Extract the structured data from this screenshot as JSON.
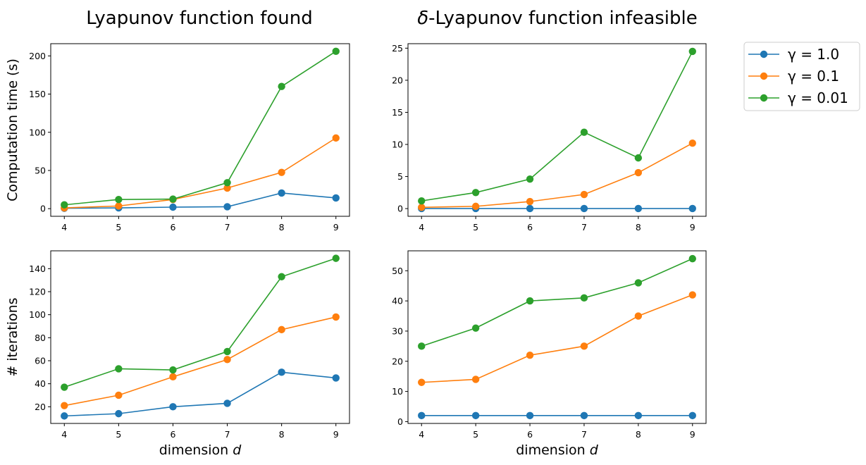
{
  "titles": {
    "left": "Lyapunov function found",
    "right_symbol": "δ",
    "right_rest": "-Lyapunov function infeasible"
  },
  "legend": [
    {
      "label": "γ = 1.0",
      "color": "#1f77b4"
    },
    {
      "label": "γ = 0.1",
      "color": "#ff7f0e"
    },
    {
      "label": "γ = 0.01",
      "color": "#2ca02c"
    }
  ],
  "chart_data": [
    {
      "id": "time_found",
      "type": "line",
      "ylabel": "Computation time (s)",
      "xlabel": "",
      "x": [
        4,
        5,
        6,
        7,
        8,
        9
      ],
      "xlim": [
        3.75,
        9.25
      ],
      "ylim": [
        -10,
        216
      ],
      "yticks": [
        0,
        50,
        100,
        150,
        200
      ],
      "series": [
        {
          "name": "γ = 1.0",
          "color": "#1f77b4",
          "values": [
            0.5,
            1,
            2,
            2.5,
            20.5,
            14
          ]
        },
        {
          "name": "γ = 0.1",
          "color": "#ff7f0e",
          "values": [
            1,
            3.5,
            12,
            27,
            47.5,
            92.5
          ]
        },
        {
          "name": "γ = 0.01",
          "color": "#2ca02c",
          "values": [
            5,
            12,
            12.5,
            34,
            160,
            206
          ]
        }
      ]
    },
    {
      "id": "time_infeasible",
      "type": "line",
      "ylabel": "",
      "xlabel": "",
      "x": [
        4,
        5,
        6,
        7,
        8,
        9
      ],
      "xlim": [
        3.75,
        9.25
      ],
      "ylim": [
        -1.2,
        25.7
      ],
      "yticks": [
        0,
        5,
        10,
        15,
        20,
        25
      ],
      "series": [
        {
          "name": "γ = 1.0",
          "color": "#1f77b4",
          "values": [
            0.02,
            0.02,
            0.02,
            0.02,
            0.02,
            0.02
          ]
        },
        {
          "name": "γ = 0.1",
          "color": "#ff7f0e",
          "values": [
            0.2,
            0.35,
            1.1,
            2.2,
            5.6,
            10.2
          ]
        },
        {
          "name": "γ = 0.01",
          "color": "#2ca02c",
          "values": [
            1.2,
            2.5,
            4.6,
            11.9,
            7.9,
            24.5
          ]
        }
      ]
    },
    {
      "id": "iter_found",
      "type": "line",
      "ylabel": "# iterations",
      "xlabel": "dimension",
      "xlabel_symbol": "d",
      "x": [
        4,
        5,
        6,
        7,
        8,
        9
      ],
      "xlim": [
        3.75,
        9.25
      ],
      "ylim": [
        5.5,
        155.5
      ],
      "yticks": [
        20,
        40,
        60,
        80,
        100,
        120,
        140
      ],
      "series": [
        {
          "name": "γ = 1.0",
          "color": "#1f77b4",
          "values": [
            12,
            14,
            20,
            23,
            50,
            45
          ]
        },
        {
          "name": "γ = 0.1",
          "color": "#ff7f0e",
          "values": [
            21,
            30,
            46,
            61,
            87,
            98
          ]
        },
        {
          "name": "γ = 0.01",
          "color": "#2ca02c",
          "values": [
            37,
            53,
            52,
            68,
            133,
            149
          ]
        }
      ]
    },
    {
      "id": "iter_infeasible",
      "type": "line",
      "ylabel": "",
      "xlabel": "dimension",
      "xlabel_symbol": "d",
      "x": [
        4,
        5,
        6,
        7,
        8,
        9
      ],
      "xlim": [
        3.75,
        9.25
      ],
      "ylim": [
        -0.6,
        56.6
      ],
      "yticks": [
        0,
        10,
        20,
        30,
        40,
        50
      ],
      "series": [
        {
          "name": "γ = 1.0",
          "color": "#1f77b4",
          "values": [
            2,
            2,
            2,
            2,
            2,
            2
          ]
        },
        {
          "name": "γ = 0.1",
          "color": "#ff7f0e",
          "values": [
            13,
            14,
            22,
            25,
            35,
            42
          ]
        },
        {
          "name": "γ = 0.01",
          "color": "#2ca02c",
          "values": [
            25,
            31,
            40,
            41,
            46,
            54
          ]
        }
      ]
    }
  ]
}
